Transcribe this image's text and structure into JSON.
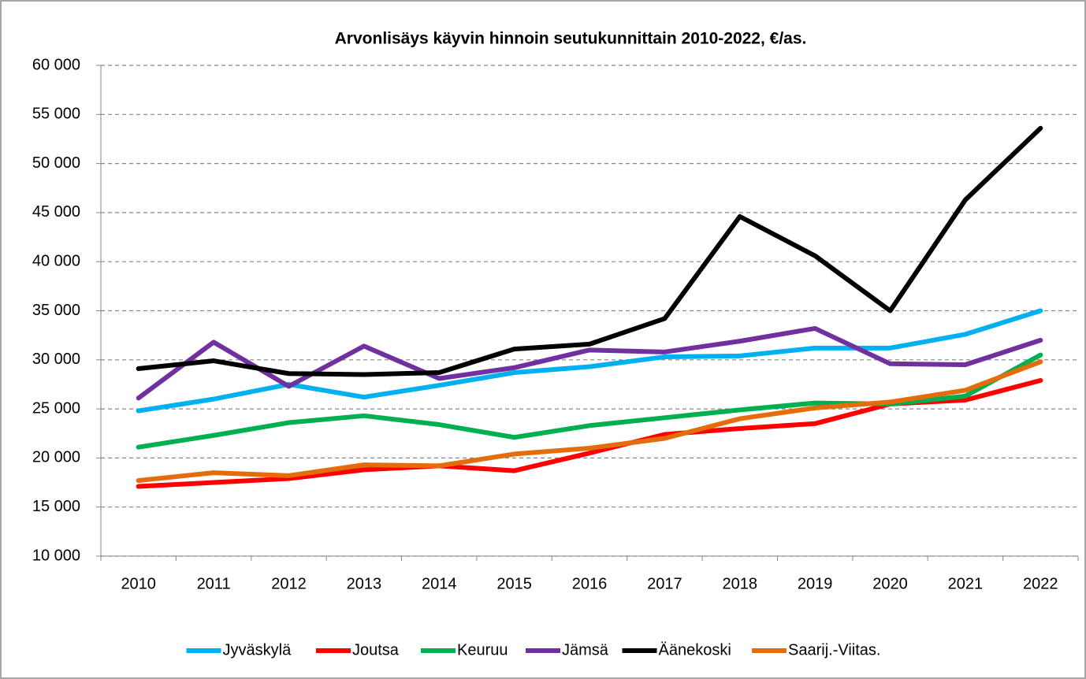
{
  "chart_data": {
    "type": "line",
    "title": "Arvonlisäys käyvin hinnoin seutukunnittain 2010-2022, €/as.",
    "categories": [
      "2010",
      "2011",
      "2012",
      "2013",
      "2014",
      "2015",
      "2016",
      "2017",
      "2018",
      "2019",
      "2020",
      "2021",
      "2022"
    ],
    "series": [
      {
        "name": "Jyväskylä",
        "color": "#00b0f0",
        "values": [
          24800,
          26000,
          27500,
          26200,
          27400,
          28700,
          29300,
          30300,
          30400,
          31200,
          31200,
          32600,
          35000
        ]
      },
      {
        "name": "Joutsa",
        "color": "#ff0000",
        "values": [
          17100,
          17500,
          17900,
          18800,
          19200,
          18700,
          20500,
          22400,
          23000,
          23500,
          25500,
          25900,
          27900
        ]
      },
      {
        "name": "Keuruu",
        "color": "#00b050",
        "values": [
          21100,
          22300,
          23600,
          24300,
          23400,
          22100,
          23300,
          24100,
          24900,
          25600,
          25500,
          26300,
          30500
        ]
      },
      {
        "name": "Jämsä",
        "color": "#7030a0",
        "values": [
          26100,
          31800,
          27300,
          31400,
          28100,
          29200,
          31000,
          30800,
          31900,
          33200,
          29600,
          29500,
          32000
        ]
      },
      {
        "name": "Äänekoski",
        "color": "#000000",
        "values": [
          29100,
          29900,
          28600,
          28500,
          28700,
          31100,
          31600,
          34200,
          44600,
          40600,
          35000,
          46300,
          53600
        ]
      },
      {
        "name": "Saarij.-Viitas.",
        "color": "#e46c0a",
        "values": [
          17700,
          18500,
          18200,
          19300,
          19200,
          20400,
          21000,
          22000,
          24000,
          25100,
          25700,
          26900,
          29800
        ]
      }
    ],
    "ylim": [
      10000,
      60000
    ],
    "yticks": [
      {
        "value": 10000,
        "label": "10 000"
      },
      {
        "value": 15000,
        "label": "15 000"
      },
      {
        "value": 20000,
        "label": "20 000"
      },
      {
        "value": 25000,
        "label": "25 000"
      },
      {
        "value": 30000,
        "label": "30 000"
      },
      {
        "value": 35000,
        "label": "35 000"
      },
      {
        "value": 40000,
        "label": "40 000"
      },
      {
        "value": 45000,
        "label": "45 000"
      },
      {
        "value": 50000,
        "label": "50 000"
      },
      {
        "value": 55000,
        "label": "55 000"
      },
      {
        "value": 60000,
        "label": "60 000"
      }
    ],
    "grid": true,
    "legend": "bottom"
  }
}
